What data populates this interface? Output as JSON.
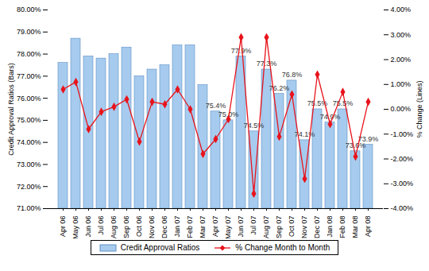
{
  "chart_data": {
    "type": "bar",
    "categories": [
      "Apr 06",
      "May 06",
      "Jun 06",
      "Jul 06",
      "Aug 06",
      "Sep 06",
      "Oct 06",
      "Nov 06",
      "Dec 06",
      "Jan 07",
      "Feb 07",
      "Mar 07",
      "Apr 07",
      "May 07",
      "Jun 07",
      "Jul 07",
      "Aug 07",
      "Sep 07",
      "Oct 07",
      "Nov 07",
      "Dec 07",
      "Jan 08",
      "Feb 08",
      "Mar 08",
      "Apr 08"
    ],
    "ylabel": "Credit Approval Ratios (Bars)",
    "y2label": "% Change (Lines)",
    "ylim": [
      71,
      80
    ],
    "yticks": [
      {
        "value": 71,
        "label": "71.00%"
      },
      {
        "value": 72,
        "label": "72.00%"
      },
      {
        "value": 73,
        "label": "73.00%"
      },
      {
        "value": 74,
        "label": "74.00%"
      },
      {
        "value": 75,
        "label": "75.00%"
      },
      {
        "value": 76,
        "label": "76.00%"
      },
      {
        "value": 77,
        "label": "77.00%"
      },
      {
        "value": 78,
        "label": "78.00%"
      },
      {
        "value": 79,
        "label": "79.00%"
      },
      {
        "value": 80,
        "label": "80.00%"
      }
    ],
    "y2lim": [
      -4,
      4
    ],
    "y2ticks": [
      {
        "value": -4,
        "label": "-4.00%"
      },
      {
        "value": -3,
        "label": "-3.00%"
      },
      {
        "value": -2,
        "label": "-2.00%"
      },
      {
        "value": -1,
        "label": "-1.00%"
      },
      {
        "value": 0,
        "label": "0.00%"
      },
      {
        "value": 1,
        "label": "1.00%"
      },
      {
        "value": 2,
        "label": "2.00%"
      },
      {
        "value": 3,
        "label": "3.00%"
      },
      {
        "value": 4,
        "label": "4.00%"
      }
    ],
    "grid": false,
    "legend": "bottom",
    "data_labels": true,
    "series": [
      {
        "name": "Credit Approval Ratios",
        "type": "bar",
        "color": "#a6cbee",
        "values": [
          77.6,
          78.7,
          77.9,
          77.8,
          78.0,
          78.3,
          77.0,
          77.3,
          77.5,
          78.4,
          78.4,
          76.6,
          75.4,
          75.0,
          77.9,
          74.5,
          77.3,
          76.2,
          76.8,
          74.1,
          75.5,
          74.9,
          75.5,
          73.6,
          73.9
        ],
        "value_labels": [
          null,
          null,
          null,
          null,
          null,
          null,
          null,
          null,
          null,
          null,
          null,
          null,
          "75.4%",
          "75.0%",
          "77.9%",
          "74.5%",
          "77.3%",
          "76.2%",
          "76.8%",
          "74.1%",
          "75.5%",
          "74.9%",
          "75.5%",
          "73.6%",
          "73.9%"
        ]
      },
      {
        "name": "% Change Month to Month",
        "type": "line",
        "axis": "y2",
        "color": "#e8131b",
        "marker": "diamond",
        "line_style": "solid",
        "values": [
          0.8,
          1.1,
          -0.8,
          -0.1,
          0.1,
          0.4,
          -1.3,
          0.3,
          0.2,
          0.8,
          0.0,
          -1.8,
          -1.2,
          -0.4,
          2.9,
          -3.4,
          2.9,
          -1.1,
          0.6,
          -2.8,
          1.4,
          -0.6,
          0.7,
          -1.9,
          0.3
        ]
      }
    ]
  }
}
